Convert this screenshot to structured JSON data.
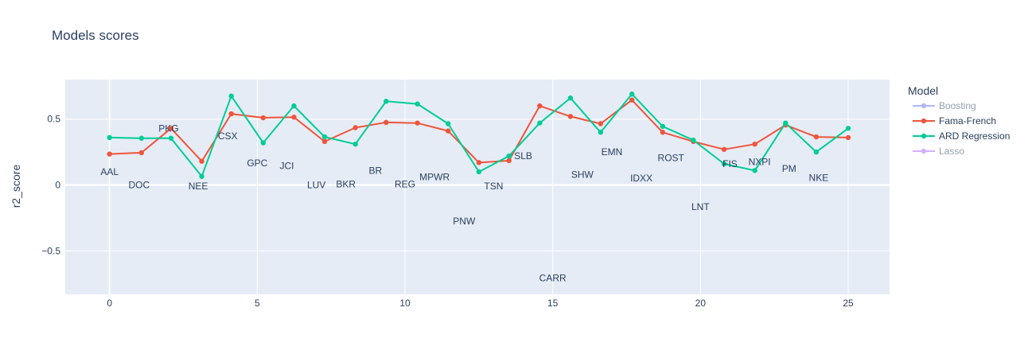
{
  "chart_data": {
    "type": "line",
    "title": "Models scores",
    "xlabel": "",
    "ylabel": "r2_score",
    "xlim": [
      -1.5,
      26.4
    ],
    "ylim": [
      -0.83,
      0.8
    ],
    "x_ticks": [
      0,
      5,
      10,
      15,
      20,
      25
    ],
    "x_tick_labels": [
      "0",
      "5",
      "10",
      "15",
      "20",
      "25"
    ],
    "y_ticks": [
      -0.5,
      0,
      0.5
    ],
    "y_tick_labels": [
      "−0.5",
      "0",
      "0.5"
    ],
    "grid": true,
    "legend": {
      "title": "Model",
      "position": "right",
      "entries": [
        {
          "name": "Boosting",
          "color": "#636efa",
          "hidden": true
        },
        {
          "name": "Fama-French",
          "color": "#ef553b",
          "hidden": false
        },
        {
          "name": "ARD Regression",
          "color": "#00cc96",
          "hidden": false
        },
        {
          "name": "Lasso",
          "color": "#ab63fa",
          "hidden": true
        }
      ]
    },
    "x": [
      0,
      1,
      2,
      3,
      4,
      5,
      6,
      7,
      8,
      9,
      10,
      11,
      12,
      13,
      14,
      15,
      16,
      17,
      18,
      19,
      20,
      21,
      22,
      23,
      24,
      25
    ],
    "series": [
      {
        "name": "Fama-French",
        "color": "#ef553b",
        "x": [
          0,
          1.08,
          2.08,
          3.12,
          4.12,
          5.2,
          6.24,
          7.28,
          8.32,
          9.36,
          10.42,
          11.46,
          12.5,
          13.52,
          14.56,
          15.6,
          16.62,
          17.68,
          18.72,
          19.76,
          20.8,
          21.84,
          22.88,
          23.92,
          25.0
        ],
        "values": [
          0.235,
          0.245,
          0.43,
          0.18,
          0.54,
          0.51,
          0.515,
          0.33,
          0.435,
          0.475,
          0.47,
          0.41,
          0.17,
          0.185,
          0.6,
          0.52,
          0.465,
          0.645,
          0.4,
          0.33,
          0.27,
          0.31,
          0.455,
          0.365,
          0.36
        ]
      },
      {
        "name": "ARD Regression",
        "color": "#00cc96",
        "x": [
          0,
          1.08,
          2.08,
          3.12,
          4.12,
          5.2,
          6.24,
          7.28,
          8.32,
          9.36,
          10.42,
          11.46,
          12.5,
          13.52,
          14.56,
          15.6,
          16.62,
          17.68,
          18.72,
          19.76,
          20.8,
          21.84,
          22.88,
          23.92,
          25.0
        ],
        "values": [
          0.36,
          0.355,
          0.355,
          0.065,
          0.675,
          0.32,
          0.6,
          0.365,
          0.31,
          0.635,
          0.615,
          0.465,
          0.1,
          0.22,
          0.47,
          0.66,
          0.4,
          0.69,
          0.445,
          0.34,
          0.16,
          0.11,
          0.47,
          0.25,
          0.43
        ]
      }
    ],
    "annotations": [
      {
        "text": "AAL",
        "x": 0,
        "y": 0.1
      },
      {
        "text": "DOC",
        "x": 1,
        "y": 0.0
      },
      {
        "text": "PKG",
        "x": 2,
        "y": 0.43
      },
      {
        "text": "NEE",
        "x": 3,
        "y": -0.01
      },
      {
        "text": "CSX",
        "x": 4,
        "y": 0.37
      },
      {
        "text": "GPC",
        "x": 5,
        "y": 0.165
      },
      {
        "text": "JCI",
        "x": 6,
        "y": 0.145
      },
      {
        "text": "LUV",
        "x": 7,
        "y": 0.0
      },
      {
        "text": "BKR",
        "x": 8,
        "y": 0.005
      },
      {
        "text": "BR",
        "x": 9,
        "y": 0.11
      },
      {
        "text": "REG",
        "x": 10,
        "y": 0.005
      },
      {
        "text": "MPWR",
        "x": 11,
        "y": 0.06
      },
      {
        "text": "PNW",
        "x": 12,
        "y": -0.275
      },
      {
        "text": "TSN",
        "x": 13,
        "y": -0.01
      },
      {
        "text": "SLB",
        "x": 14,
        "y": 0.22
      },
      {
        "text": "CARR",
        "x": 15,
        "y": -0.705
      },
      {
        "text": "SHW",
        "x": 16,
        "y": 0.08
      },
      {
        "text": "EMN",
        "x": 17,
        "y": 0.25
      },
      {
        "text": "IDXX",
        "x": 18,
        "y": 0.05
      },
      {
        "text": "ROST",
        "x": 19,
        "y": 0.205
      },
      {
        "text": "LNT",
        "x": 20,
        "y": -0.165
      },
      {
        "text": "FIS",
        "x": 21,
        "y": 0.16
      },
      {
        "text": "NXPI",
        "x": 22,
        "y": 0.175
      },
      {
        "text": "PM",
        "x": 23,
        "y": 0.125
      },
      {
        "text": "NKE",
        "x": 24,
        "y": 0.055
      }
    ]
  }
}
